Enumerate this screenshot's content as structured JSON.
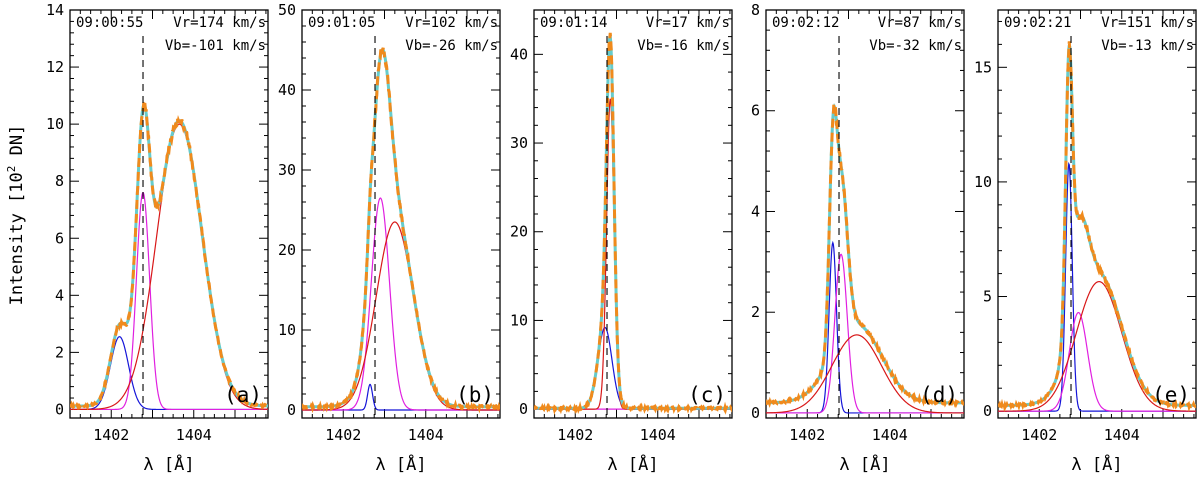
{
  "figure": {
    "ylabel_prefix": "Intensity [10",
    "ylabel_exp": "2",
    "ylabel_suffix": " DN]",
    "xlabel": "λ [Å]"
  },
  "colors": {
    "observed": "#f08a1c",
    "total_fit": "#66cccc",
    "blue_component": "#1515d8",
    "magenta_component": "#e020e0",
    "red_component": "#d81818",
    "reference_line": "#000000"
  },
  "chart_data": [
    {
      "type": "line",
      "panel_label": "(a)",
      "time": "09:00:55",
      "vr": "Vr=174 km/s",
      "vb": "Vb=-101 km/s",
      "xlim": [
        1401.0,
        1405.8
      ],
      "ylim": [
        -0.3,
        14
      ],
      "yticks": [
        0,
        2,
        4,
        6,
        8,
        10,
        12,
        14
      ],
      "xticks": [
        1402,
        1404
      ],
      "reference_wavelength": 1402.77,
      "components": {
        "blue": {
          "amplitude": 2.55,
          "center": 1402.2,
          "sigma": 0.22
        },
        "magenta": {
          "amplitude": 7.6,
          "center": 1402.77,
          "sigma": 0.16
        },
        "red": {
          "amplitude": 10.0,
          "center": 1403.65,
          "sigma": 0.55
        }
      },
      "background": 0.12
    },
    {
      "type": "line",
      "panel_label": "(b)",
      "time": "09:01:05",
      "vr": "Vr=102 km/s",
      "vb": "Vb=-26 km/s",
      "xlim": [
        1401.0,
        1405.8
      ],
      "ylim": [
        -1.0,
        50
      ],
      "yticks": [
        0,
        10,
        20,
        30,
        40,
        50
      ],
      "xticks": [
        1402,
        1404
      ],
      "reference_wavelength": 1402.77,
      "components": {
        "blue": {
          "amplitude": 3.2,
          "center": 1402.65,
          "sigma": 0.06
        },
        "magenta": {
          "amplitude": 26.5,
          "center": 1402.9,
          "sigma": 0.22
        },
        "red": {
          "amplitude": 23.5,
          "center": 1403.25,
          "sigma": 0.45
        }
      },
      "background": 0.4
    },
    {
      "type": "line",
      "panel_label": "(c)",
      "time": "09:01:14",
      "vr": "Vr=17 km/s",
      "vb": "Vb=-16 km/s",
      "xlim": [
        1401.0,
        1405.8
      ],
      "ylim": [
        -1.0,
        45
      ],
      "yticks": [
        0,
        10,
        20,
        30,
        40
      ],
      "ytick_labels": [
        "0",
        "10",
        "20",
        "30",
        "40"
      ],
      "xticks": [
        1402,
        1404
      ],
      "reference_wavelength": 1402.77,
      "components": {
        "blue": {
          "amplitude": 9.2,
          "center": 1402.72,
          "sigma": 0.17
        },
        "magenta": {
          "amplitude": 0.0,
          "center": 1402.85,
          "sigma": 0.1
        },
        "red": {
          "amplitude": 35.0,
          "center": 1402.85,
          "sigma": 0.09
        }
      },
      "background": 0.1
    },
    {
      "type": "line",
      "panel_label": "(d)",
      "time": "09:02:12",
      "vr": "Vr=87 km/s",
      "vb": "Vb=-32 km/s",
      "xlim": [
        1401.0,
        1405.8
      ],
      "ylim": [
        -0.1,
        8
      ],
      "yticks": [
        0,
        2,
        4,
        6,
        8
      ],
      "xticks": [
        1402,
        1404
      ],
      "reference_wavelength": 1402.77,
      "components": {
        "blue": {
          "amplitude": 3.38,
          "center": 1402.62,
          "sigma": 0.09
        },
        "magenta": {
          "amplitude": 3.15,
          "center": 1402.82,
          "sigma": 0.15
        },
        "red": {
          "amplitude": 1.55,
          "center": 1403.2,
          "sigma": 0.6
        }
      },
      "background": 0.2
    },
    {
      "type": "line",
      "panel_label": "(e)",
      "time": "09:02:21",
      "vr": "Vr=151 km/s",
      "vb": "Vb=-13 km/s",
      "xlim": [
        1401.0,
        1405.8
      ],
      "ylim": [
        -0.3,
        17.5
      ],
      "yticks": [
        0,
        5,
        10,
        15
      ],
      "xticks": [
        1402,
        1404
      ],
      "reference_wavelength": 1402.77,
      "components": {
        "blue": {
          "amplitude": 10.8,
          "center": 1402.72,
          "sigma": 0.08
        },
        "magenta": {
          "amplitude": 4.3,
          "center": 1402.95,
          "sigma": 0.22
        },
        "red": {
          "amplitude": 5.65,
          "center": 1403.45,
          "sigma": 0.55
        }
      },
      "background": 0.25
    }
  ]
}
